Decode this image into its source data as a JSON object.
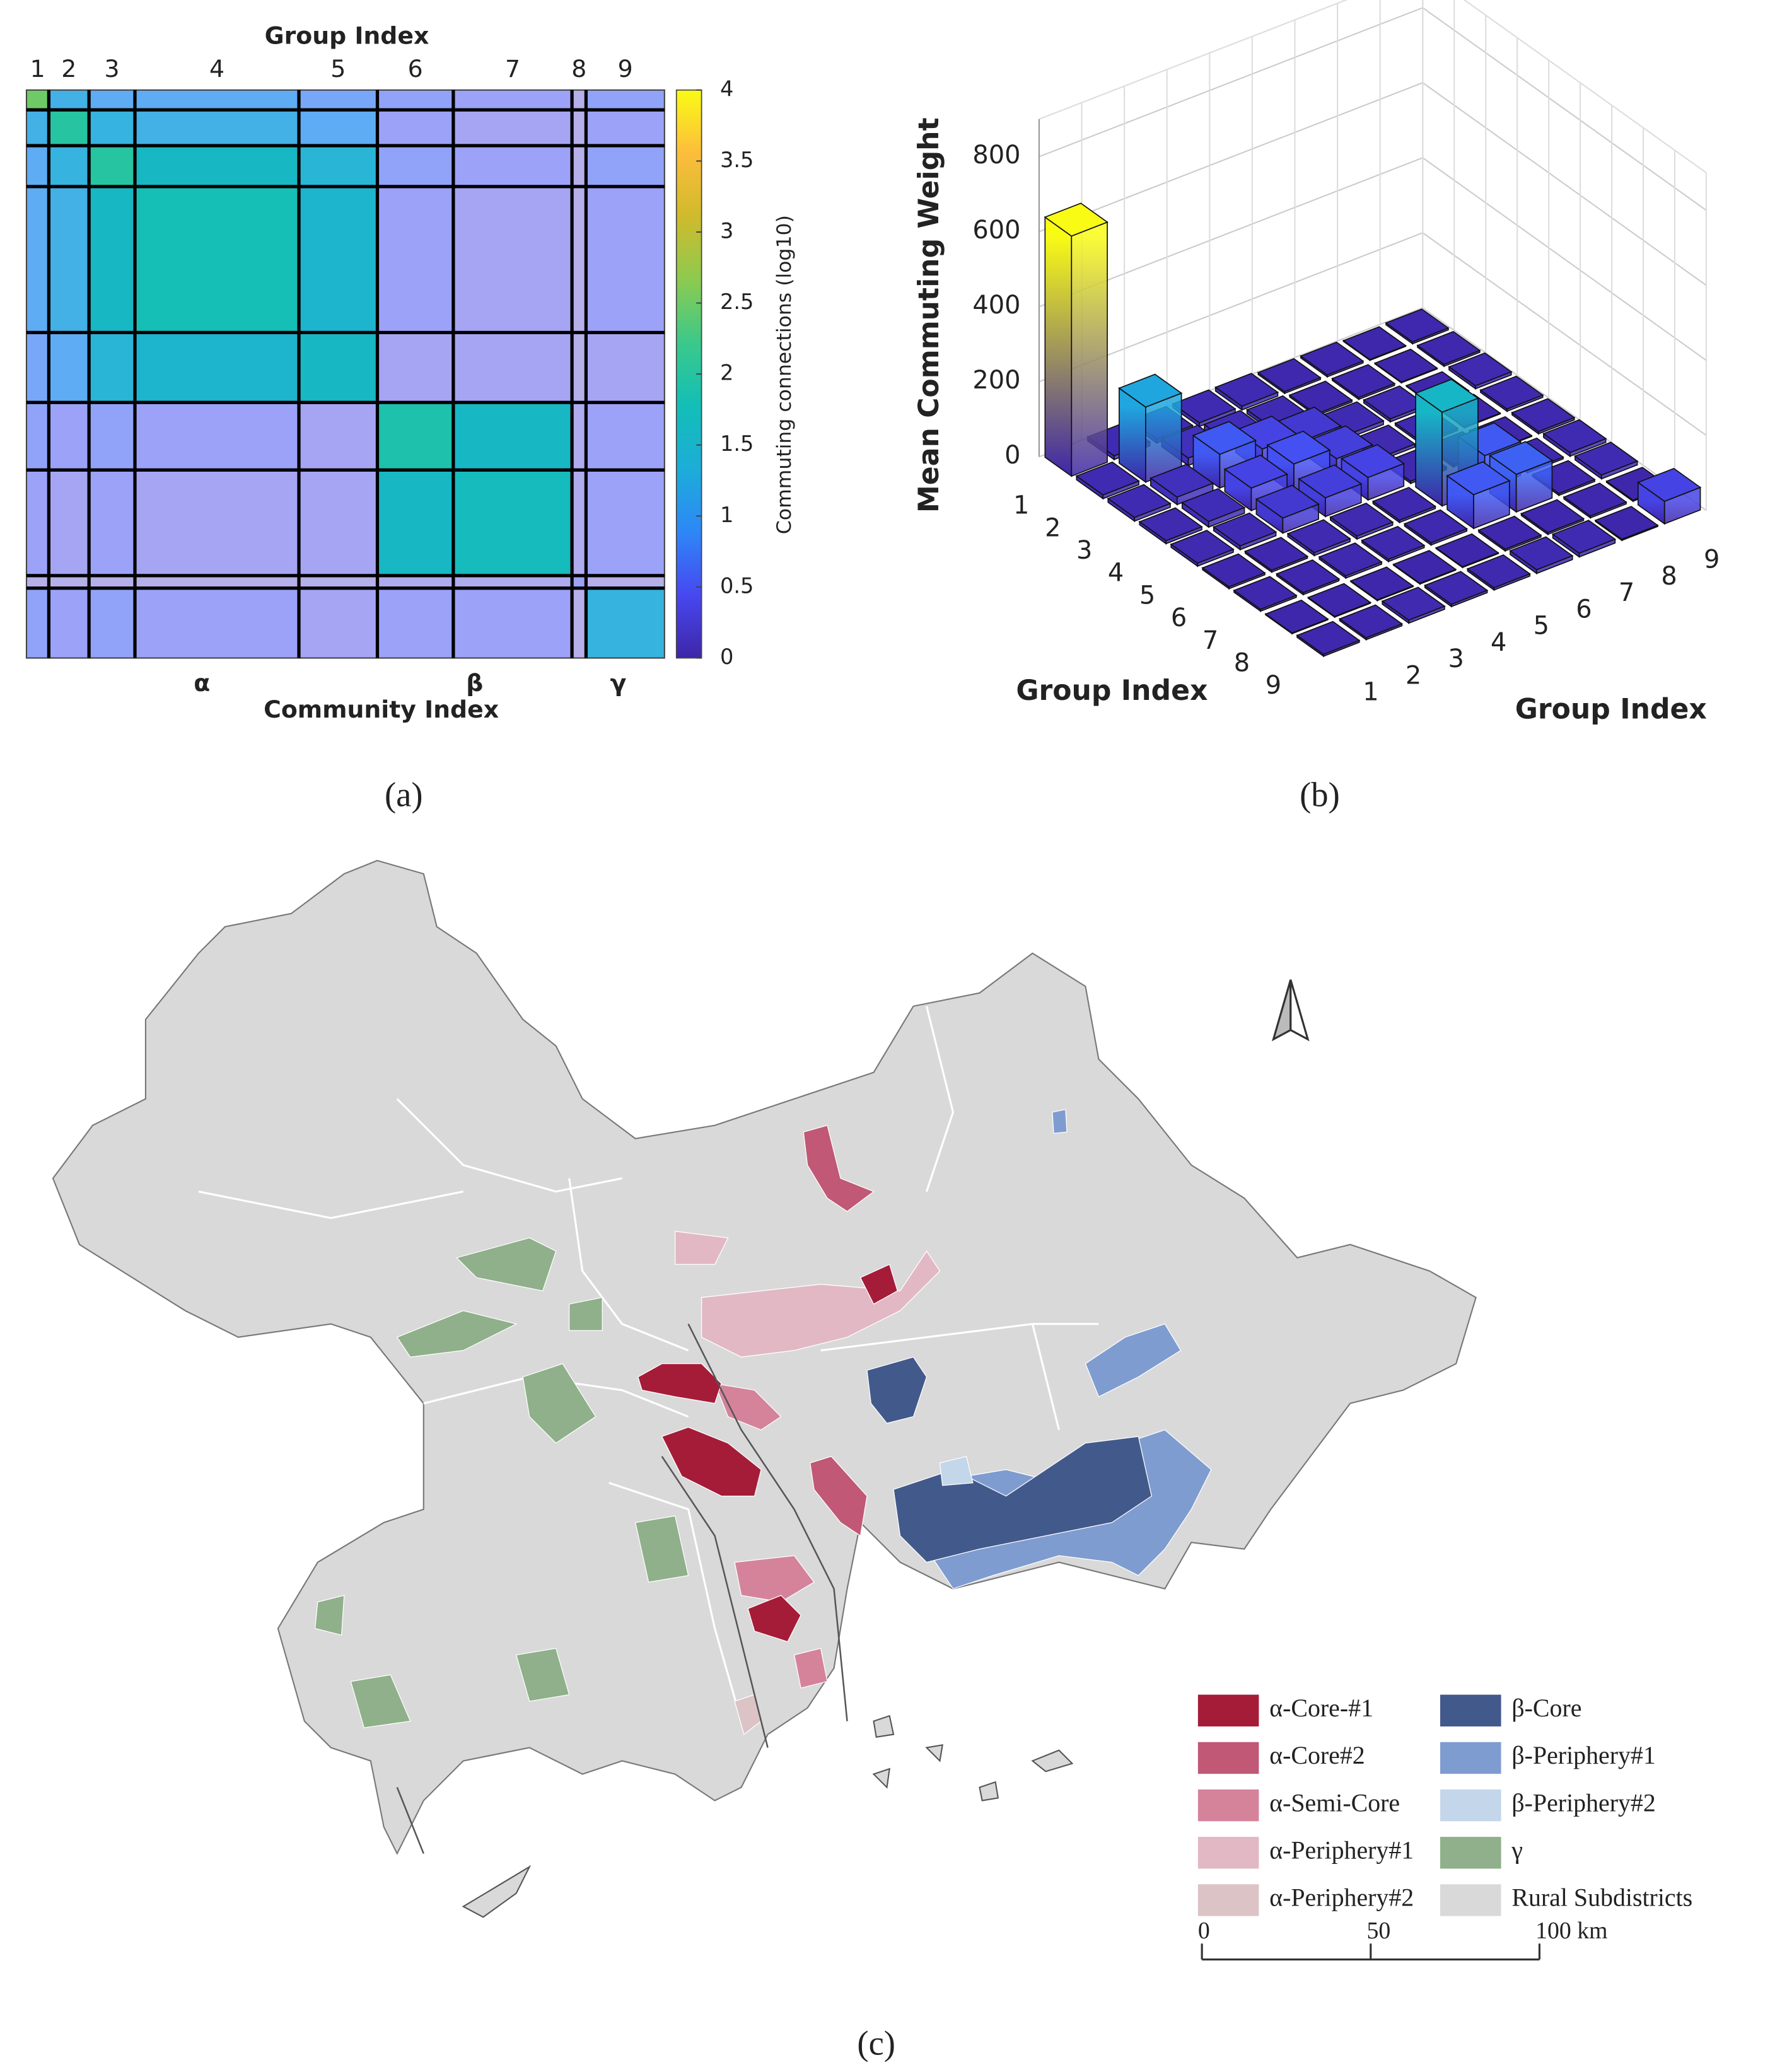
{
  "chart_data": [
    {
      "type": "heatmap",
      "title": "Group Index",
      "x_label": "Community Index",
      "categories": [
        "1",
        "2",
        "3",
        "4",
        "5",
        "6",
        "7",
        "8",
        "9"
      ],
      "community_labels": [
        "α",
        "β",
        "γ"
      ],
      "values": [
        [
          2.5,
          1.2,
          1.0,
          1.0,
          0.8,
          0.6,
          0.5,
          0.2,
          0.6
        ],
        [
          1.2,
          2.0,
          1.3,
          1.2,
          1.0,
          0.5,
          0.4,
          0.2,
          0.5
        ],
        [
          1.0,
          1.3,
          2.0,
          1.6,
          1.4,
          0.6,
          0.5,
          0.2,
          0.6
        ],
        [
          1.0,
          1.2,
          1.6,
          1.8,
          1.5,
          0.5,
          0.4,
          0.2,
          0.5
        ],
        [
          0.8,
          1.0,
          1.4,
          1.5,
          1.6,
          0.4,
          0.4,
          0.2,
          0.4
        ],
        [
          0.6,
          0.5,
          0.6,
          0.5,
          0.4,
          1.9,
          1.6,
          0.3,
          0.5
        ],
        [
          0.5,
          0.4,
          0.5,
          0.4,
          0.4,
          1.6,
          1.7,
          0.3,
          0.5
        ],
        [
          0.2,
          0.2,
          0.2,
          0.2,
          0.2,
          0.3,
          0.3,
          0.5,
          0.2
        ],
        [
          0.6,
          0.5,
          0.6,
          0.5,
          0.4,
          0.5,
          0.5,
          0.2,
          1.3
        ]
      ],
      "colorbar": {
        "label": "Commuting connections (log10)",
        "lim": [
          0,
          4
        ],
        "ticks": [
          0,
          0.5,
          1,
          1.5,
          2,
          2.5,
          3,
          3.5,
          4
        ]
      }
    },
    {
      "type": "bar3d",
      "z_label": "Mean Commuting Weight",
      "row_label": "Group Index",
      "col_label": "Group Index",
      "rows": [
        "1",
        "2",
        "3",
        "4",
        "5",
        "6",
        "7",
        "8",
        "9"
      ],
      "cols": [
        "1",
        "2",
        "3",
        "4",
        "5",
        "6",
        "7",
        "8",
        "9"
      ],
      "zlim": [
        0,
        900
      ],
      "zticks": [
        0,
        200,
        400,
        600,
        800
      ],
      "values": [
        [
          640,
          10,
          10,
          10,
          10,
          5,
          5,
          2,
          5
        ],
        [
          10,
          200,
          20,
          15,
          10,
          5,
          5,
          2,
          5
        ],
        [
          10,
          20,
          90,
          60,
          40,
          10,
          8,
          2,
          8
        ],
        [
          8,
          15,
          60,
          80,
          50,
          8,
          6,
          2,
          6
        ],
        [
          8,
          10,
          40,
          50,
          60,
          6,
          6,
          2,
          6
        ],
        [
          5,
          5,
          8,
          8,
          6,
          250,
          90,
          5,
          10
        ],
        [
          5,
          5,
          6,
          6,
          6,
          90,
          100,
          5,
          10
        ],
        [
          2,
          2,
          2,
          2,
          2,
          5,
          5,
          5,
          3
        ],
        [
          5,
          5,
          8,
          6,
          6,
          10,
          10,
          3,
          60
        ]
      ]
    }
  ],
  "map": {
    "legend": [
      {
        "name": "α-Core-#1",
        "color": "#a51c38"
      },
      {
        "name": "α-Core#2",
        "color": "#c05876"
      },
      {
        "name": "α-Semi-Core",
        "color": "#d4839b"
      },
      {
        "name": "α-Periphery#1",
        "color": "#e2b8c4"
      },
      {
        "name": "α-Periphery#2",
        "color": "#dcc3c6"
      },
      {
        "name": "β-Core",
        "color": "#42598b"
      },
      {
        "name": "β-Periphery#1",
        "color": "#7f9cd0"
      },
      {
        "name": "β-Periphery#2",
        "color": "#c4d6ea"
      },
      {
        "name": "γ",
        "color": "#8fb08a"
      },
      {
        "name": "Rural Subdistricts",
        "color": "#d9d9d9"
      }
    ],
    "scale_bar": {
      "lim": [
        0,
        100
      ],
      "ticks": [
        0,
        50,
        {
          "value": 100,
          "label": "100 km"
        }
      ]
    }
  },
  "captions": [
    "(a)",
    "(b)",
    "(c)"
  ]
}
